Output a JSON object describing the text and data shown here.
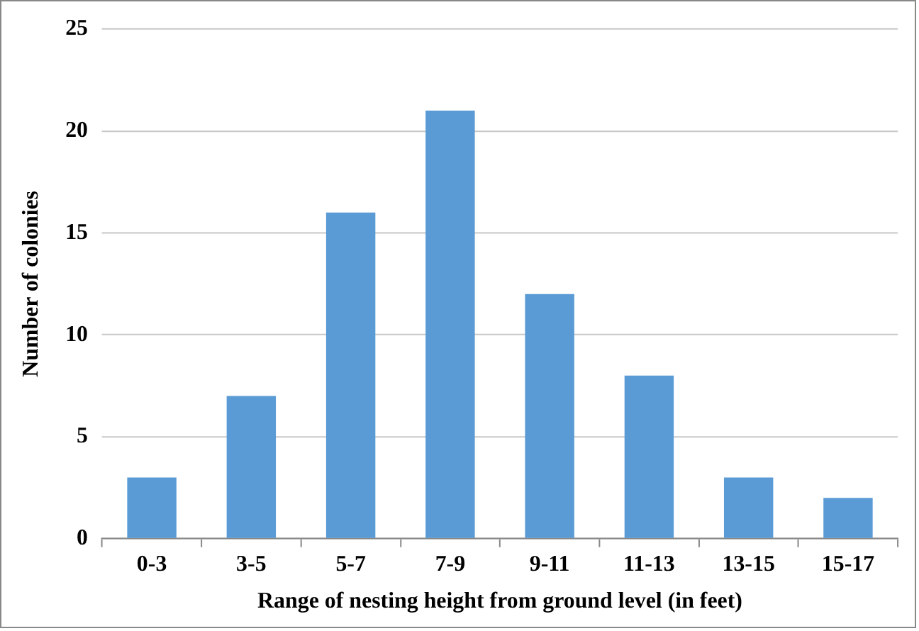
{
  "chart_data": {
    "type": "bar",
    "xlabel": "Range of nesting height from ground level (in feet)",
    "ylabel": "Number of colonies",
    "categories": [
      "0-3",
      "3-5",
      "5-7",
      "7-9",
      "9-11",
      "11-13",
      "13-15",
      "15-17"
    ],
    "values": [
      3,
      7,
      16,
      21,
      12,
      8,
      3,
      2
    ],
    "color": "#5b9bd5",
    "ylim": [
      0,
      25
    ],
    "yticks": [
      0,
      5,
      10,
      15,
      20,
      25
    ],
    "grid": "y"
  }
}
